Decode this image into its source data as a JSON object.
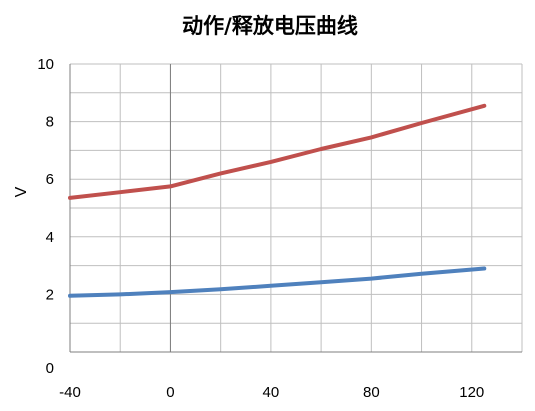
{
  "chart_data": {
    "type": "line",
    "title": "动作/释放电压曲线",
    "xlabel": "",
    "ylabel": "V",
    "xlim": [
      -40,
      140
    ],
    "ylim": [
      0,
      10
    ],
    "x_ticks": [
      -40,
      0,
      40,
      80,
      120
    ],
    "y_ticks": [
      0,
      2,
      4,
      6,
      8,
      10
    ],
    "x_minor_step": 20,
    "y_minor_step": 1,
    "grid": true,
    "series": [
      {
        "color": "#c0504d",
        "x": [
          -40,
          -20,
          0,
          20,
          40,
          60,
          80,
          100,
          125
        ],
        "y": [
          5.35,
          5.55,
          5.75,
          6.2,
          6.6,
          7.05,
          7.45,
          7.95,
          8.55
        ]
      },
      {
        "color": "#4f81bd",
        "x": [
          -40,
          -20,
          0,
          20,
          40,
          60,
          80,
          100,
          125
        ],
        "y": [
          1.95,
          2.0,
          2.08,
          2.18,
          2.3,
          2.42,
          2.55,
          2.72,
          2.9
        ]
      }
    ]
  }
}
